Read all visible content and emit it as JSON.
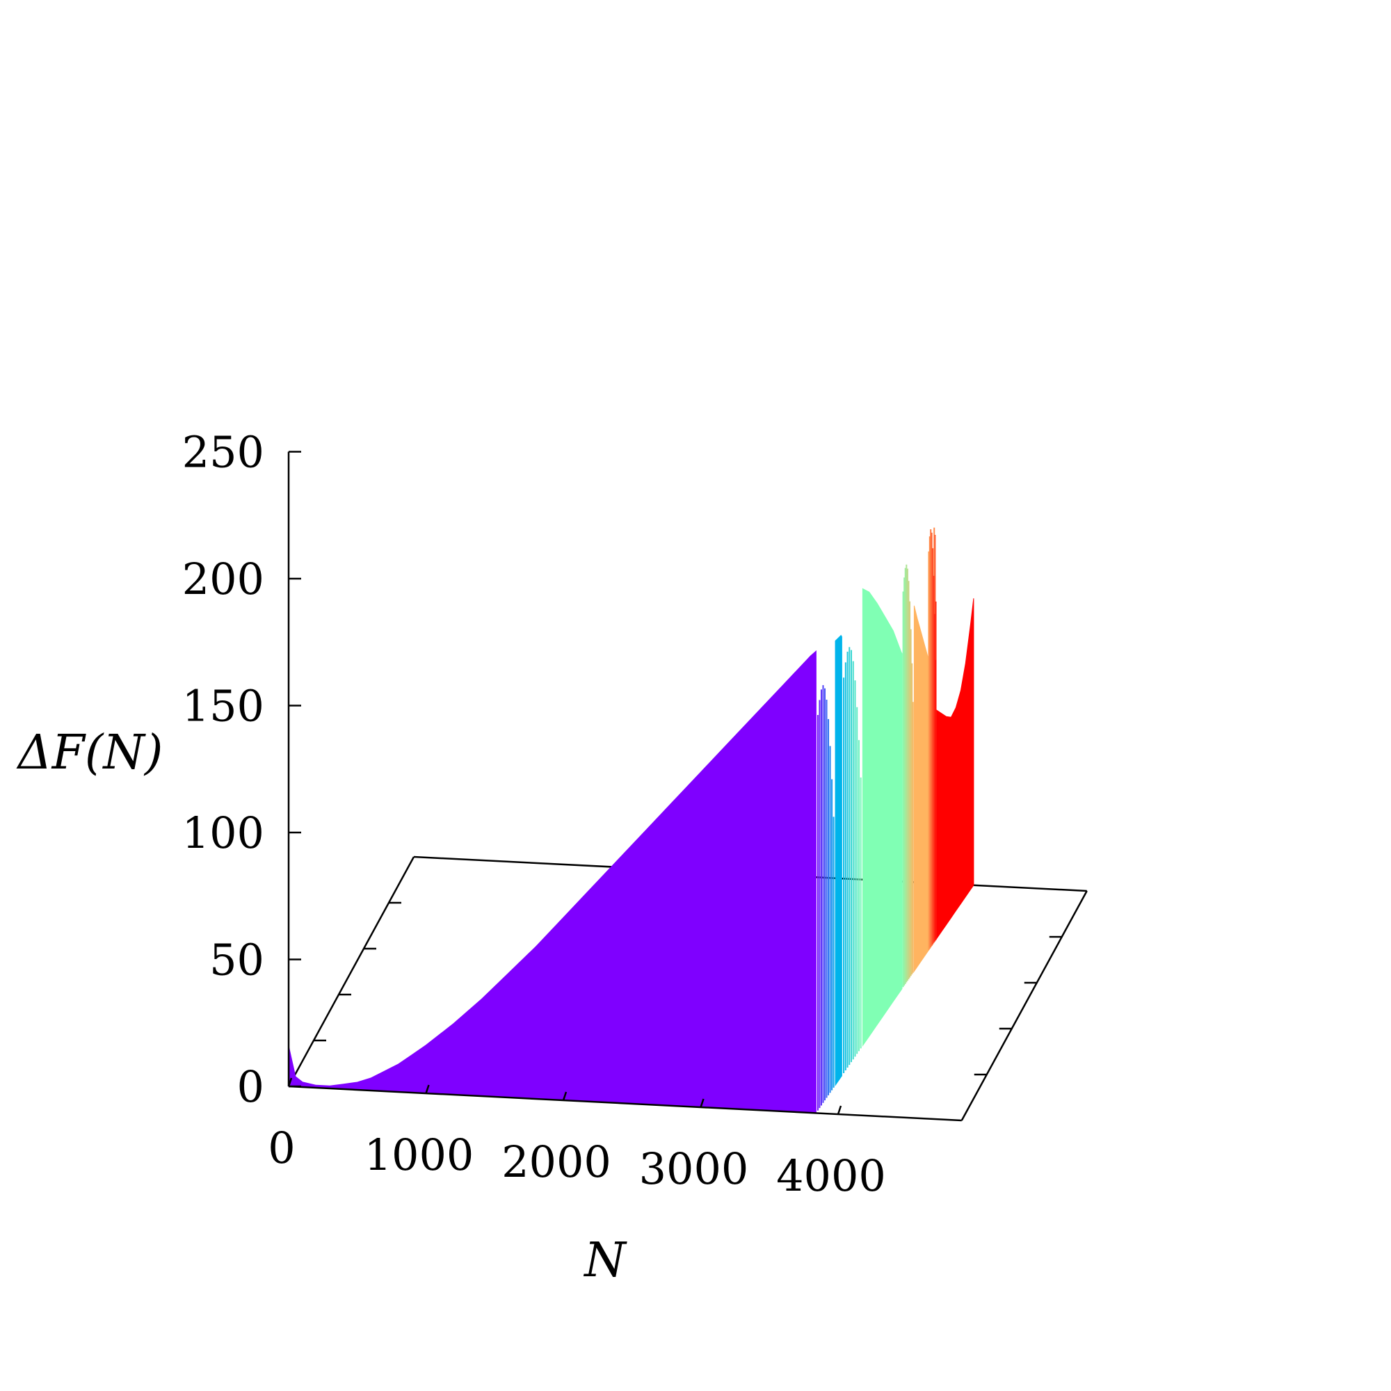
{
  "chart_data": {
    "type": "area",
    "view": "3d-waterfall",
    "xlabel": "N",
    "zlabel": "ΔF(N)",
    "x_ticks": [
      "0",
      "1000",
      "2000",
      "3000",
      "4000"
    ],
    "z_ticks": [
      "0",
      "50",
      "100",
      "150",
      "200",
      "250"
    ],
    "xlim": [
      0,
      4900
    ],
    "zlim": [
      0,
      250
    ],
    "grid": false,
    "legend": "none",
    "series": [
      {
        "color": "#7f00ff",
        "x": [
          0,
          50,
          100,
          200,
          300,
          400,
          500,
          600,
          700,
          800,
          900,
          1000,
          1200,
          1400,
          1600,
          1800,
          2000,
          2200,
          2400,
          2600,
          2800,
          3000,
          3200,
          3400,
          3600,
          3800,
          3840
        ],
        "y": [
          16,
          4,
          2,
          1,
          1,
          2,
          3,
          5,
          8,
          11,
          15,
          19,
          28,
          38,
          49,
          60,
          72,
          84,
          96,
          108,
          120,
          132,
          144,
          156,
          168,
          180,
          182
        ]
      },
      {
        "color": "#00b4eb",
        "x": [
          4080,
          4150,
          4160
        ],
        "y": [
          175,
          174,
          173
        ]
      },
      {
        "color": "#80ffb4",
        "x": [
          4420,
          4500,
          4600,
          4700,
          4800,
          4900,
          4910
        ],
        "y": [
          180,
          175,
          166,
          156,
          146,
          133,
          132
        ]
      },
      {
        "color": "#ffb460",
        "x": [
          5060,
          5100,
          5150,
          5200,
          5250,
          5300
        ],
        "y": [
          144,
          137,
          129,
          121,
          113,
          106
        ]
      },
      {
        "color": "#ff0000",
        "x": [
          5340,
          5400,
          5460,
          5520,
          5580,
          5640,
          5700,
          5760,
          5800
        ],
        "y": [
          90,
          86,
          82,
          79,
          80,
          84,
          92,
          104,
          113
        ]
      }
    ],
    "gradient_strips": [
      {
        "from_x": 3840,
        "to_x": 4080,
        "color_from": "#7f00ff",
        "color_to": "#00b4eb",
        "count": 10
      },
      {
        "from_x": 4160,
        "to_x": 4420,
        "color_from": "#00b4eb",
        "color_to": "#80ffb4",
        "count": 10
      },
      {
        "from_x": 4910,
        "to_x": 5060,
        "color_from": "#80ffb4",
        "color_to": "#ffb460",
        "count": 10
      },
      {
        "from_x": 5300,
        "to_x": 5340,
        "color_from": "#ffb460",
        "color_to": "#ff0000",
        "count": 3
      },
      {
        "from_x": 5230,
        "to_x": 5340,
        "color_from": "#ffb460",
        "color_to": "#ff0000",
        "count": 8
      }
    ]
  }
}
